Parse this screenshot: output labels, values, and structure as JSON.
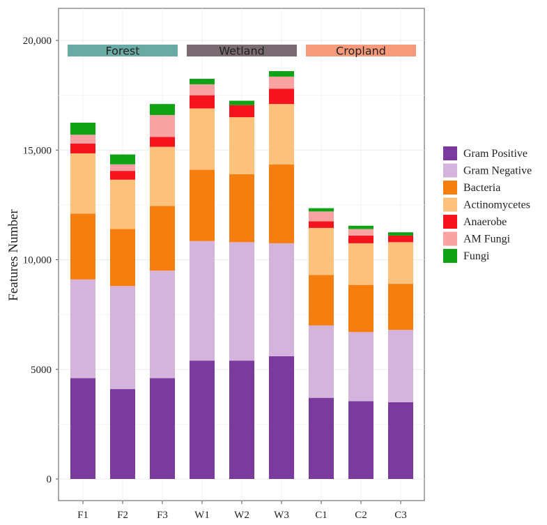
{
  "chart_data": {
    "type": "stacked-bar",
    "title": "",
    "xlabel": "",
    "ylabel": "Features Number",
    "ylim": [
      0,
      21000
    ],
    "yticks": [
      0,
      5000,
      10000,
      15000,
      20000
    ],
    "ytick_labels": [
      "0",
      "5000",
      "10,000",
      "15,000",
      "20,000"
    ],
    "grid": true,
    "legend_position": "right",
    "categories": [
      "F1",
      "F2",
      "F3",
      "W1",
      "W2",
      "W3",
      "C1",
      "C2",
      "C3"
    ],
    "groups": [
      {
        "label": "Forest",
        "color": "#6aaaa4",
        "categories": [
          "F1",
          "F2",
          "F3"
        ]
      },
      {
        "label": "Wetland",
        "color": "#7a6a72",
        "categories": [
          "W1",
          "W2",
          "W3"
        ]
      },
      {
        "label": "Cropland",
        "color": "#f79a7b",
        "categories": [
          "C1",
          "C2",
          "C3"
        ]
      }
    ],
    "series": [
      {
        "name": "Gram Positive",
        "color": "#7b3a9e",
        "values": [
          4600,
          4100,
          4600,
          5400,
          5400,
          5600,
          3700,
          3550,
          3500
        ]
      },
      {
        "name": "Gram Negative",
        "color": "#d4b3dc",
        "values": [
          4500,
          4700,
          4900,
          5450,
          5400,
          5150,
          3300,
          3150,
          3300
        ]
      },
      {
        "name": "Bacteria",
        "color": "#f57e0f",
        "values": [
          3000,
          2600,
          2950,
          3250,
          3100,
          3600,
          2300,
          2150,
          2100
        ]
      },
      {
        "name": "Actinomycetes",
        "color": "#fcc27c",
        "values": [
          2750,
          2250,
          2700,
          2800,
          2600,
          2750,
          2150,
          1900,
          1900
        ]
      },
      {
        "name": "Anaerobe",
        "color": "#f5141d",
        "values": [
          450,
          400,
          450,
          600,
          550,
          700,
          300,
          350,
          300
        ]
      },
      {
        "name": "AM Fungi",
        "color": "#f9a2a1",
        "values": [
          400,
          300,
          1000,
          500,
          0,
          550,
          450,
          300,
          0
        ]
      },
      {
        "name": "Fungi",
        "color": "#0fa215",
        "values": [
          550,
          450,
          500,
          250,
          200,
          250,
          150,
          150,
          150
        ]
      }
    ]
  }
}
